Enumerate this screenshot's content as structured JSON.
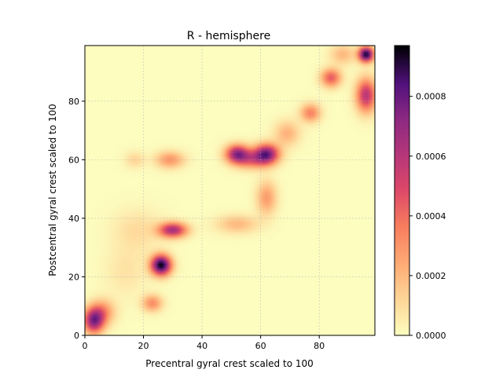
{
  "chart_data": {
    "type": "heatmap",
    "title": "R - hemisphere",
    "xlabel": "Precentral gyral crest scaled to 100",
    "ylabel": "Postcentral gyral crest scaled to 100",
    "xlim": [
      0,
      99
    ],
    "ylim": [
      0,
      99
    ],
    "xticks": [
      "0",
      "20",
      "40",
      "60",
      "80"
    ],
    "yticks": [
      "0",
      "20",
      "40",
      "60",
      "80"
    ],
    "grid": true,
    "colormap": "magma_r",
    "colorbar": {
      "min": 0.0,
      "max": 0.00097,
      "ticks": [
        "0.0000",
        "0.0002",
        "0.0004",
        "0.0006",
        "0.0008"
      ]
    },
    "blobs": [
      {
        "x": 26,
        "y": 24,
        "value": 0.00097,
        "sx": 2.4,
        "sy": 2.4
      },
      {
        "x": 96,
        "y": 96,
        "value": 0.00095,
        "sx": 1.8,
        "sy": 1.8
      },
      {
        "x": 3,
        "y": 5,
        "value": 0.0007,
        "sx": 2.4,
        "sy": 3.0
      },
      {
        "x": 6,
        "y": 8,
        "value": 0.0003,
        "sx": 3.0,
        "sy": 3.0
      },
      {
        "x": 23,
        "y": 11,
        "value": 0.00032,
        "sx": 2.4,
        "sy": 2.0
      },
      {
        "x": 30,
        "y": 36,
        "value": 0.00065,
        "sx": 3.4,
        "sy": 1.8
      },
      {
        "x": 18,
        "y": 36,
        "value": 0.0001,
        "sx": 6.0,
        "sy": 5.0
      },
      {
        "x": 29,
        "y": 60,
        "value": 0.0003,
        "sx": 3.4,
        "sy": 2.0
      },
      {
        "x": 17,
        "y": 60,
        "value": 0.00012,
        "sx": 2.4,
        "sy": 2.0
      },
      {
        "x": 52,
        "y": 62,
        "value": 0.00068,
        "sx": 2.8,
        "sy": 2.2
      },
      {
        "x": 62,
        "y": 62,
        "value": 0.00075,
        "sx": 3.0,
        "sy": 2.4
      },
      {
        "x": 57,
        "y": 60,
        "value": 0.00035,
        "sx": 4.0,
        "sy": 2.2
      },
      {
        "x": 62,
        "y": 47,
        "value": 0.00028,
        "sx": 2.4,
        "sy": 4.0
      },
      {
        "x": 52,
        "y": 38,
        "value": 0.0002,
        "sx": 5.0,
        "sy": 2.2
      },
      {
        "x": 69,
        "y": 69,
        "value": 0.00022,
        "sx": 3.0,
        "sy": 3.0
      },
      {
        "x": 77,
        "y": 76,
        "value": 0.00035,
        "sx": 2.4,
        "sy": 2.2
      },
      {
        "x": 84,
        "y": 88,
        "value": 0.00045,
        "sx": 2.4,
        "sy": 2.2
      },
      {
        "x": 96,
        "y": 82,
        "value": 0.0006,
        "sx": 2.4,
        "sy": 4.0
      },
      {
        "x": 88,
        "y": 96,
        "value": 0.0002,
        "sx": 3.0,
        "sy": 2.4
      },
      {
        "x": 14,
        "y": 22,
        "value": 8e-05,
        "sx": 5.0,
        "sy": 6.0
      }
    ]
  }
}
